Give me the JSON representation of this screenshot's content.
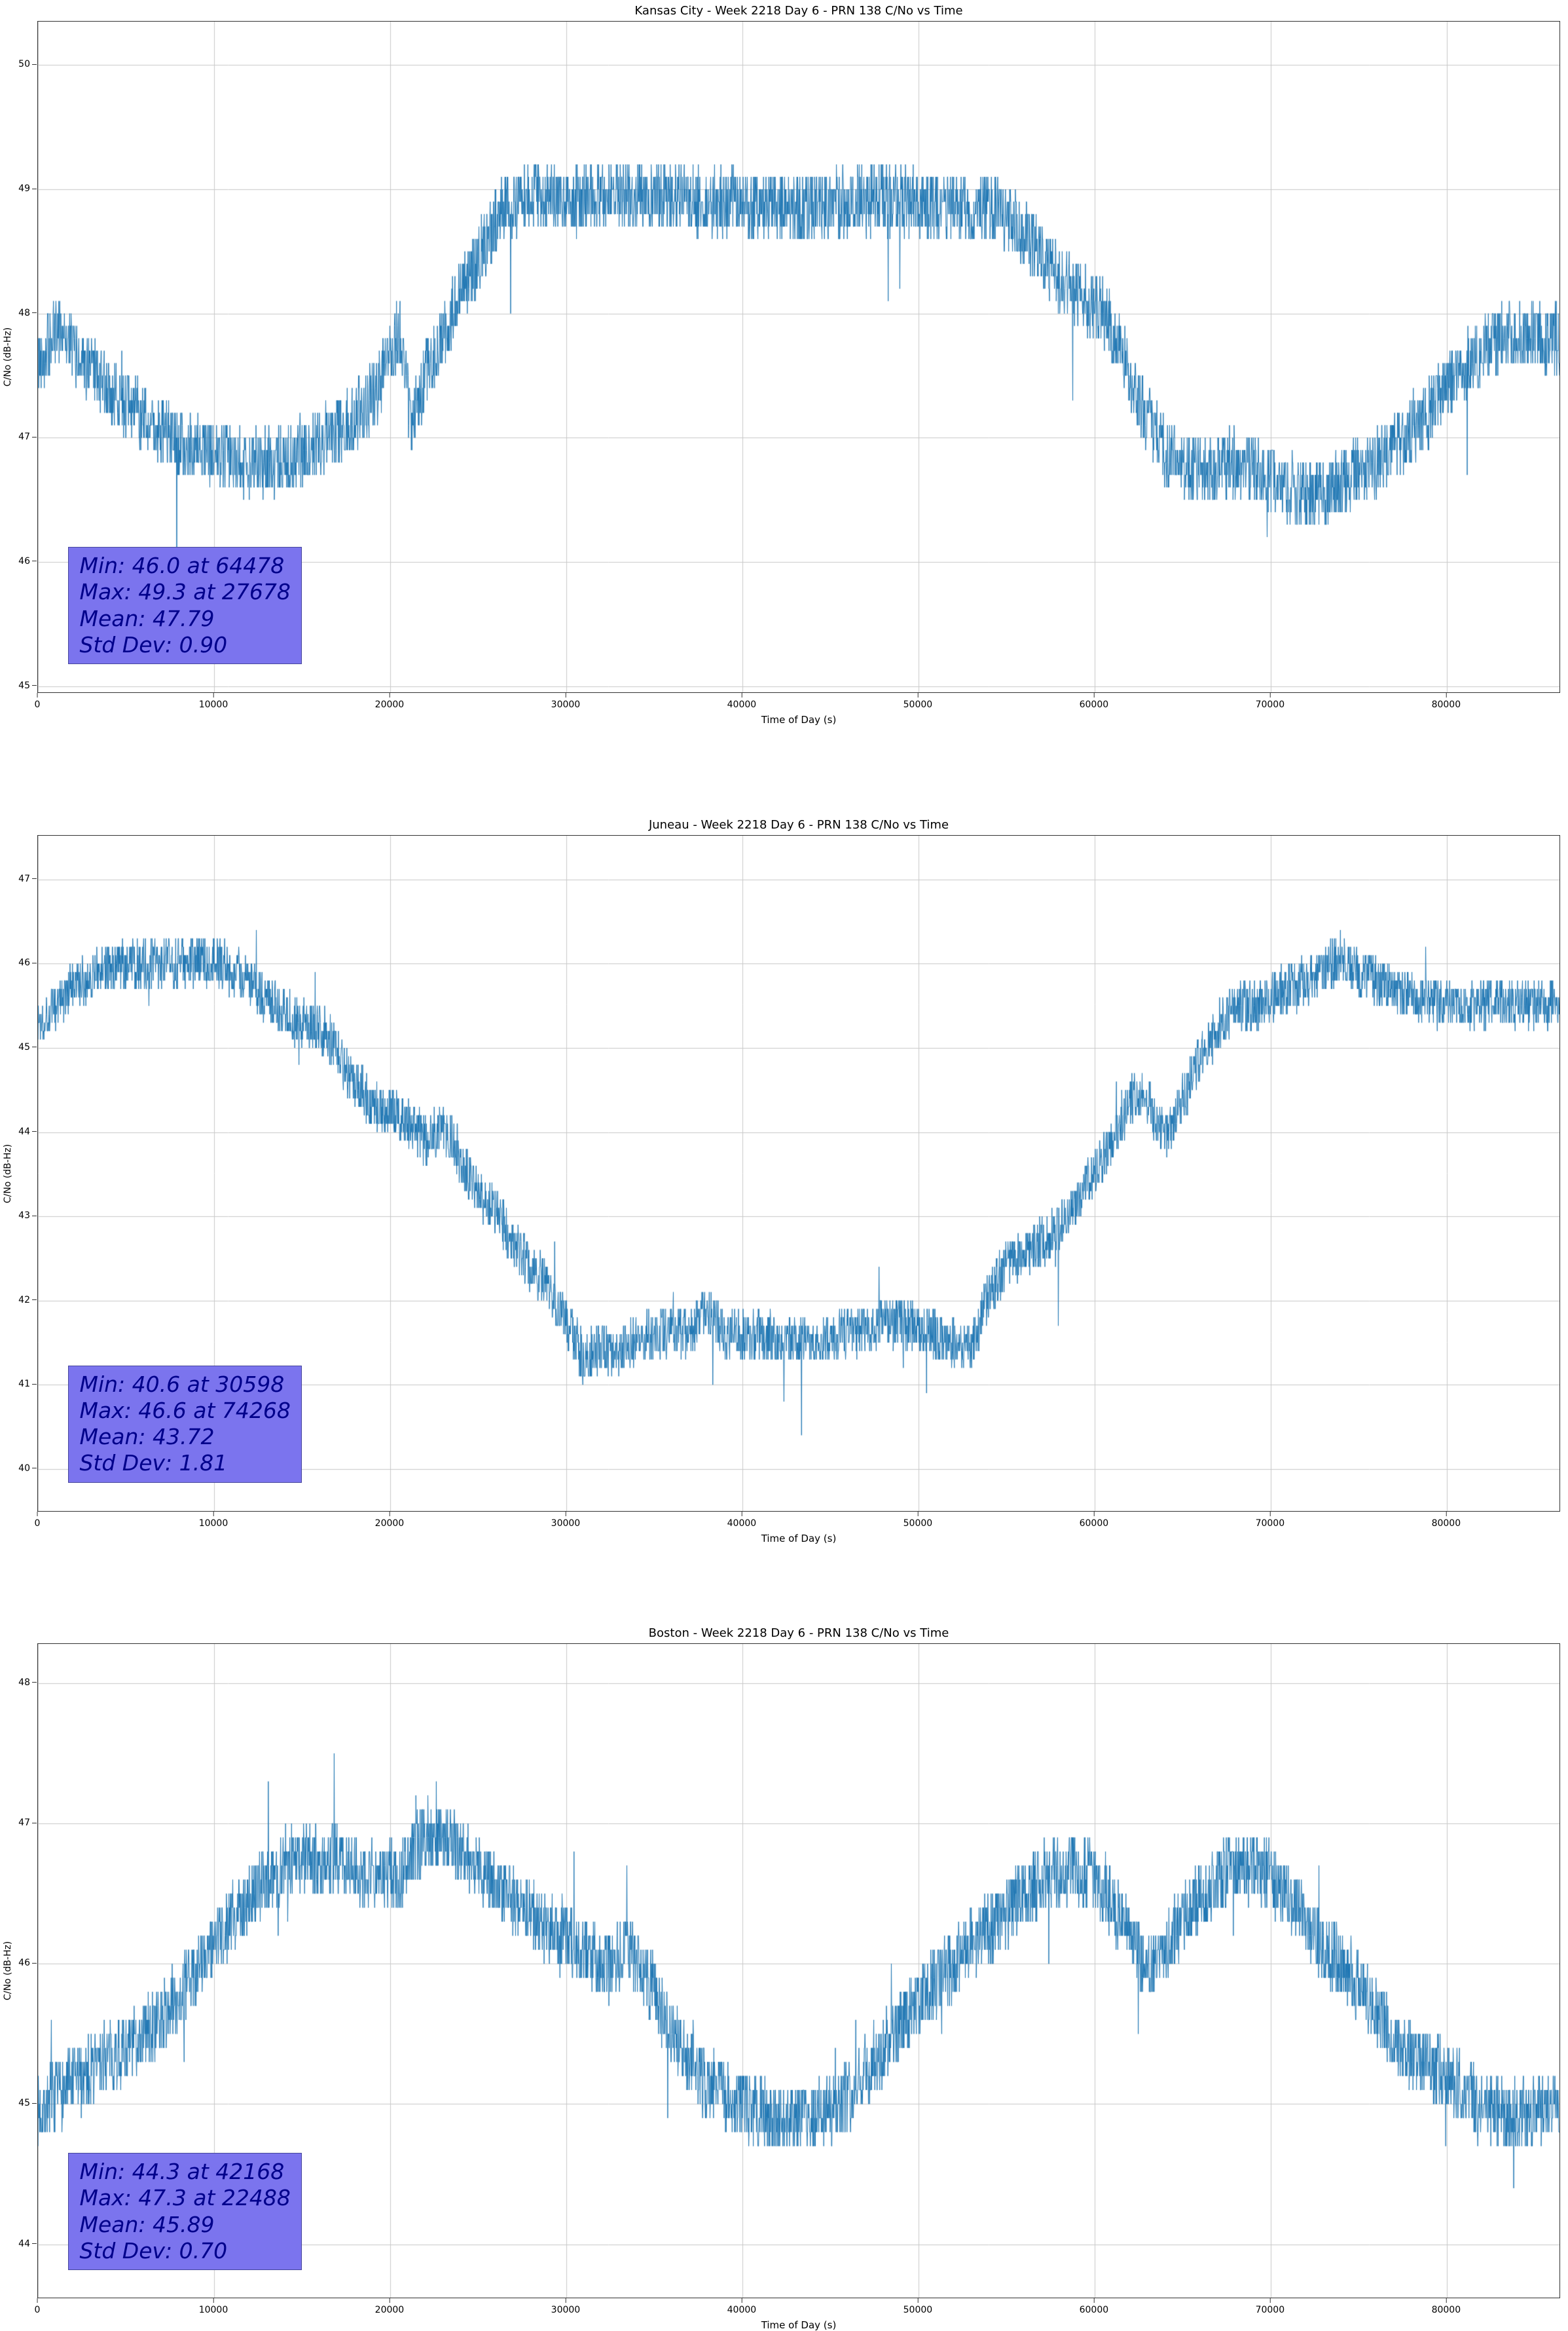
{
  "figure": {
    "background": "#ffffff",
    "line_color": "#1f77b4",
    "grid_color": "#c8c8c8",
    "axis_color": "#333333",
    "annotation_bg": "#7b74ee",
    "annotation_text_color": "#00008b"
  },
  "chart_data": [
    {
      "type": "line",
      "title": "Kansas City - Week 2218 Day 6 - PRN 138 C/No vs Time",
      "xlabel": "Time of Day (s)",
      "ylabel": "C/No (dB-Hz)",
      "grid": true,
      "legend_position": "none",
      "xlim": [
        0,
        86400
      ],
      "ylim": [
        44.95,
        50.35
      ],
      "xticks": [
        0,
        10000,
        20000,
        30000,
        40000,
        50000,
        60000,
        70000,
        80000
      ],
      "yticks": [
        45,
        46,
        47,
        48,
        49,
        50
      ],
      "annotation": {
        "min": "Min: 46.0 at 64478",
        "max": "Max: 49.3 at 27678",
        "mean": "Mean: 47.79",
        "std": "Std Dev: 0.90"
      },
      "stats_values": {
        "min": 46.0,
        "min_time": 64478,
        "max": 49.3,
        "max_time": 27678,
        "mean": 47.79,
        "std_dev": 0.9
      },
      "series_trend_keypoints": [
        [
          0,
          47.6
        ],
        [
          1200,
          47.9
        ],
        [
          2500,
          47.6
        ],
        [
          4000,
          47.4
        ],
        [
          6000,
          47.15
        ],
        [
          8000,
          46.95
        ],
        [
          10000,
          46.85
        ],
        [
          12000,
          46.8
        ],
        [
          14000,
          46.8
        ],
        [
          16000,
          46.95
        ],
        [
          18000,
          47.15
        ],
        [
          19500,
          47.45
        ],
        [
          20500,
          47.9
        ],
        [
          21200,
          47.1
        ],
        [
          22000,
          47.5
        ],
        [
          23500,
          48.0
        ],
        [
          25000,
          48.45
        ],
        [
          26500,
          48.85
        ],
        [
          28000,
          48.95
        ],
        [
          30000,
          48.9
        ],
        [
          33000,
          48.95
        ],
        [
          36000,
          48.9
        ],
        [
          40000,
          48.9
        ],
        [
          43000,
          48.85
        ],
        [
          46000,
          48.9
        ],
        [
          50000,
          48.9
        ],
        [
          53000,
          48.85
        ],
        [
          55000,
          48.8
        ],
        [
          56500,
          48.55
        ],
        [
          58000,
          48.3
        ],
        [
          59500,
          48.1
        ],
        [
          60500,
          48.0
        ],
        [
          61500,
          47.7
        ],
        [
          62500,
          47.3
        ],
        [
          63500,
          47.0
        ],
        [
          64500,
          46.8
        ],
        [
          66000,
          46.75
        ],
        [
          68000,
          46.8
        ],
        [
          70000,
          46.7
        ],
        [
          71500,
          46.55
        ],
        [
          73000,
          46.55
        ],
        [
          74500,
          46.7
        ],
        [
          76000,
          46.8
        ],
        [
          77500,
          47.0
        ],
        [
          79000,
          47.2
        ],
        [
          80500,
          47.5
        ],
        [
          82000,
          47.7
        ],
        [
          83500,
          47.85
        ],
        [
          85000,
          47.8
        ],
        [
          86400,
          47.8
        ]
      ],
      "noise_band": 0.55,
      "spike_prob": 0.002,
      "spike_size": 1.0,
      "up_spike_prob": 0.002,
      "up_spike_size": 0.3,
      "seed": 42,
      "sample_step": 20
    },
    {
      "type": "line",
      "title": "Juneau - Week 2218 Day 6 - PRN 138 C/No vs Time",
      "xlabel": "Time of Day (s)",
      "ylabel": "C/No (dB-Hz)",
      "grid": true,
      "legend_position": "none",
      "xlim": [
        0,
        86400
      ],
      "ylim": [
        39.5,
        47.52
      ],
      "xticks": [
        0,
        10000,
        20000,
        30000,
        40000,
        50000,
        60000,
        70000,
        80000
      ],
      "yticks": [
        40,
        41,
        42,
        43,
        44,
        45,
        46,
        47
      ],
      "annotation": {
        "min": "Min: 40.6 at 30598",
        "max": "Max: 46.6 at 74268",
        "mean": "Mean: 43.72",
        "std": "Std Dev: 1.81"
      },
      "stats_values": {
        "min": 40.6,
        "min_time": 30598,
        "max": 46.6,
        "max_time": 74268,
        "mean": 43.72,
        "std_dev": 1.81
      },
      "series_trend_keypoints": [
        [
          0,
          45.3
        ],
        [
          1000,
          45.5
        ],
        [
          2500,
          45.8
        ],
        [
          4000,
          45.95
        ],
        [
          6000,
          46.0
        ],
        [
          8000,
          46.0
        ],
        [
          10000,
          46.05
        ],
        [
          11500,
          45.85
        ],
        [
          13000,
          45.6
        ],
        [
          14500,
          45.35
        ],
        [
          16000,
          45.25
        ],
        [
          17000,
          44.95
        ],
        [
          18000,
          44.6
        ],
        [
          19000,
          44.35
        ],
        [
          20000,
          44.25
        ],
        [
          21000,
          44.1
        ],
        [
          22000,
          43.9
        ],
        [
          23000,
          44.1
        ],
        [
          24000,
          43.7
        ],
        [
          25000,
          43.3
        ],
        [
          26000,
          43.05
        ],
        [
          27000,
          42.7
        ],
        [
          28000,
          42.35
        ],
        [
          29000,
          42.2
        ],
        [
          30000,
          41.75
        ],
        [
          31000,
          41.3
        ],
        [
          32000,
          41.45
        ],
        [
          33000,
          41.4
        ],
        [
          34000,
          41.55
        ],
        [
          35000,
          41.6
        ],
        [
          36000,
          41.65
        ],
        [
          37000,
          41.6
        ],
        [
          38000,
          41.9
        ],
        [
          39000,
          41.6
        ],
        [
          40000,
          41.6
        ],
        [
          42000,
          41.55
        ],
        [
          44000,
          41.5
        ],
        [
          46000,
          41.6
        ],
        [
          48000,
          41.75
        ],
        [
          50000,
          41.7
        ],
        [
          51500,
          41.55
        ],
        [
          53000,
          41.4
        ],
        [
          54000,
          42.1
        ],
        [
          55000,
          42.4
        ],
        [
          56000,
          42.55
        ],
        [
          57000,
          42.7
        ],
        [
          58000,
          42.85
        ],
        [
          59000,
          43.2
        ],
        [
          60000,
          43.5
        ],
        [
          61000,
          43.95
        ],
        [
          62000,
          44.35
        ],
        [
          62800,
          44.5
        ],
        [
          63500,
          44.1
        ],
        [
          64200,
          44.0
        ],
        [
          65000,
          44.4
        ],
        [
          66000,
          44.85
        ],
        [
          67000,
          45.25
        ],
        [
          68000,
          45.45
        ],
        [
          69000,
          45.5
        ],
        [
          70000,
          45.6
        ],
        [
          71000,
          45.7
        ],
        [
          72000,
          45.8
        ],
        [
          73000,
          45.9
        ],
        [
          74000,
          46.1
        ],
        [
          74800,
          45.9
        ],
        [
          76000,
          45.8
        ],
        [
          77500,
          45.65
        ],
        [
          79000,
          45.55
        ],
        [
          81000,
          45.5
        ],
        [
          83000,
          45.55
        ],
        [
          85000,
          45.5
        ],
        [
          86400,
          45.55
        ]
      ],
      "noise_band": 0.6,
      "spike_prob": 0.003,
      "spike_size": 0.8,
      "up_spike_prob": 0.003,
      "up_spike_size": 0.4,
      "seed": 1337,
      "sample_step": 20
    },
    {
      "type": "line",
      "title": "Boston - Week 2218 Day 6 - PRN 138 C/No vs Time",
      "xlabel": "Time of Day (s)",
      "ylabel": "C/No (dB-Hz)",
      "grid": true,
      "legend_position": "none",
      "xlim": [
        0,
        86400
      ],
      "ylim": [
        43.62,
        48.28
      ],
      "xticks": [
        0,
        10000,
        20000,
        30000,
        40000,
        50000,
        60000,
        70000,
        80000
      ],
      "yticks": [
        44,
        45,
        46,
        47,
        48
      ],
      "annotation": {
        "min": "Min: 44.3 at 42168",
        "max": "Max: 47.3 at 22488",
        "mean": "Mean: 45.89",
        "std": "Std Dev: 0.70"
      },
      "stats_values": {
        "min": 44.3,
        "min_time": 42168,
        "max": 47.3,
        "max_time": 22488,
        "mean": 45.89,
        "std_dev": 0.7
      },
      "series_trend_keypoints": [
        [
          0,
          44.95
        ],
        [
          1500,
          45.1
        ],
        [
          3000,
          45.25
        ],
        [
          5000,
          45.4
        ],
        [
          7000,
          45.6
        ],
        [
          8500,
          45.85
        ],
        [
          10000,
          46.15
        ],
        [
          11500,
          46.4
        ],
        [
          13000,
          46.6
        ],
        [
          14500,
          46.75
        ],
        [
          16000,
          46.75
        ],
        [
          17500,
          46.7
        ],
        [
          19000,
          46.65
        ],
        [
          20500,
          46.6
        ],
        [
          22000,
          46.95
        ],
        [
          23500,
          46.9
        ],
        [
          25000,
          46.7
        ],
        [
          26500,
          46.5
        ],
        [
          28000,
          46.35
        ],
        [
          30000,
          46.2
        ],
        [
          32000,
          46.0
        ],
        [
          33500,
          46.1
        ],
        [
          35000,
          45.8
        ],
        [
          36500,
          45.4
        ],
        [
          38000,
          45.15
        ],
        [
          40000,
          45.0
        ],
        [
          42000,
          44.9
        ],
        [
          44000,
          44.9
        ],
        [
          46000,
          45.05
        ],
        [
          47500,
          45.3
        ],
        [
          49000,
          45.55
        ],
        [
          50500,
          45.8
        ],
        [
          52000,
          46.0
        ],
        [
          54000,
          46.25
        ],
        [
          56000,
          46.5
        ],
        [
          57500,
          46.65
        ],
        [
          59000,
          46.7
        ],
        [
          60500,
          46.55
        ],
        [
          62000,
          46.2
        ],
        [
          63000,
          45.95
        ],
        [
          64000,
          46.1
        ],
        [
          65500,
          46.4
        ],
        [
          67000,
          46.6
        ],
        [
          68500,
          46.7
        ],
        [
          70000,
          46.6
        ],
        [
          71500,
          46.4
        ],
        [
          73000,
          46.1
        ],
        [
          74500,
          45.95
        ],
        [
          76000,
          45.65
        ],
        [
          77500,
          45.4
        ],
        [
          79000,
          45.25
        ],
        [
          80500,
          45.15
        ],
        [
          82000,
          45.0
        ],
        [
          83500,
          44.9
        ],
        [
          85000,
          44.95
        ],
        [
          86400,
          45.0
        ]
      ],
      "noise_band": 0.5,
      "spike_prob": 0.003,
      "spike_size": 0.5,
      "up_spike_prob": 0.004,
      "up_spike_size": 0.5,
      "seed": 7,
      "sample_step": 20
    }
  ]
}
